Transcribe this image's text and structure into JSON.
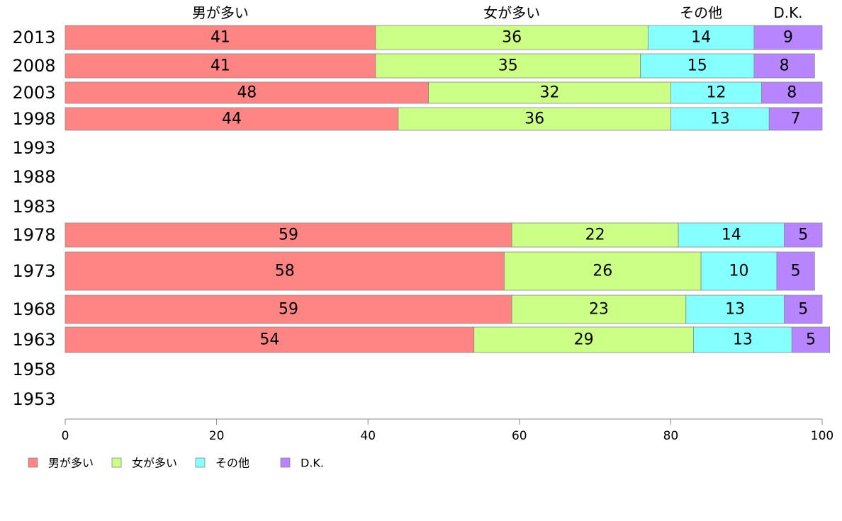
{
  "chart_data": {
    "type": "bar",
    "orientation": "horizontal",
    "stacked": true,
    "categories": [
      "2013",
      "2008",
      "2003",
      "1998",
      "1993",
      "1988",
      "1983",
      "1978",
      "1973",
      "1968",
      "1963",
      "1958",
      "1953"
    ],
    "series": [
      {
        "name": "男が多い",
        "color": "#ff8585",
        "values": [
          41,
          41,
          48,
          44,
          null,
          null,
          null,
          59,
          58,
          59,
          54,
          null,
          null
        ]
      },
      {
        "name": "女が多い",
        "color": "#ccff85",
        "values": [
          36,
          35,
          32,
          36,
          null,
          null,
          null,
          22,
          26,
          23,
          29,
          null,
          null
        ]
      },
      {
        "name": "その他",
        "color": "#85ffff",
        "values": [
          14,
          15,
          12,
          13,
          null,
          null,
          null,
          14,
          10,
          13,
          13,
          null,
          null
        ]
      },
      {
        "name": "D.K.",
        "color": "#b785ff",
        "values": [
          9,
          8,
          8,
          7,
          null,
          null,
          null,
          5,
          5,
          5,
          5,
          null,
          null
        ]
      }
    ],
    "xlim": [
      0,
      100
    ],
    "xticks": [
      0,
      20,
      40,
      60,
      80,
      100
    ],
    "legend_position": "bottom-left",
    "grid": false
  }
}
